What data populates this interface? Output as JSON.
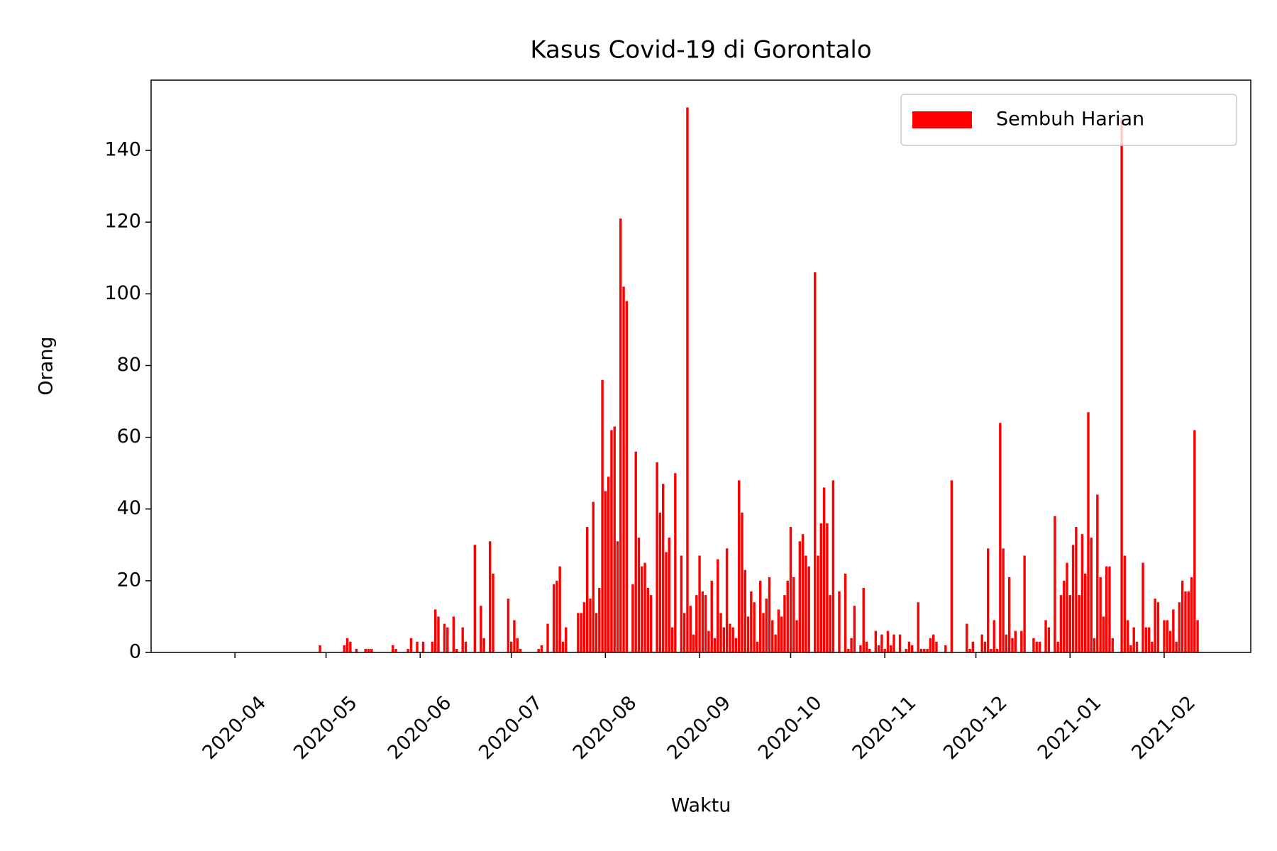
{
  "chart_data": {
    "type": "bar",
    "title": "Kasus Covid-19 di Gorontalo",
    "xlabel": "Waktu",
    "ylabel": "Orang",
    "series": [
      {
        "name": "Sembuh Harian",
        "color": "#ff0000",
        "x": [
          18381,
          18389,
          18390,
          18391,
          18393,
          18396,
          18397,
          18398,
          18405,
          18406,
          18410,
          18411,
          18413,
          18415,
          18418,
          18419,
          18420,
          18422,
          18423,
          18425,
          18426,
          18428,
          18429,
          18432,
          18434,
          18435,
          18437,
          18438,
          18443,
          18444,
          18445,
          18446,
          18447,
          18453,
          18454,
          18456,
          18458,
          18459,
          18460,
          18461,
          18462,
          18466,
          18467,
          18468,
          18469,
          18470,
          18471,
          18472,
          18473,
          18474,
          18475,
          18476,
          18477,
          18478,
          18479,
          18480,
          18481,
          18482,
          18484,
          18485,
          18486,
          18487,
          18488,
          18489,
          18490,
          18492,
          18493,
          18494,
          18495,
          18496,
          18497,
          18498,
          18500,
          18501,
          18502,
          18503,
          18504,
          18505,
          18506,
          18507,
          18508,
          18509,
          18510,
          18511,
          18512,
          18513,
          18514,
          18515,
          18516,
          18517,
          18518,
          18519,
          18520,
          18521,
          18522,
          18523,
          18524,
          18525,
          18526,
          18527,
          18528,
          18529,
          18530,
          18531,
          18532,
          18533,
          18534,
          18535,
          18536,
          18537,
          18538,
          18539,
          18540,
          18541,
          18542,
          18544,
          18545,
          18546,
          18547,
          18548,
          18549,
          18550,
          18552,
          18554,
          18555,
          18556,
          18557,
          18559,
          18560,
          18561,
          18562,
          18564,
          18565,
          18566,
          18567,
          18568,
          18569,
          18570,
          18572,
          18574,
          18575,
          18576,
          18578,
          18579,
          18580,
          18581,
          18582,
          18583,
          18584,
          18587,
          18589,
          18594,
          18595,
          18596,
          18599,
          18600,
          18601,
          18602,
          18603,
          18604,
          18605,
          18606,
          18607,
          18608,
          18609,
          18610,
          18612,
          18613,
          18616,
          18617,
          18618,
          18620,
          18621,
          18623,
          18624,
          18625,
          18626,
          18627,
          18628,
          18629,
          18630,
          18631,
          18632,
          18633,
          18634,
          18635,
          18636,
          18637,
          18638,
          18639,
          18640,
          18641,
          18642,
          18645,
          18646,
          18647,
          18648,
          18649,
          18650,
          18652,
          18653,
          18654,
          18655,
          18656,
          18657,
          18659,
          18660,
          18661,
          18662,
          18663,
          18664,
          18665,
          18666,
          18667,
          18668,
          18669,
          18670
        ],
        "values": [
          2,
          2,
          4,
          3,
          1,
          1,
          1,
          1,
          2,
          1,
          1,
          4,
          3,
          3,
          3,
          12,
          10,
          8,
          7,
          10,
          1,
          7,
          3,
          30,
          13,
          4,
          31,
          22,
          15,
          3,
          9,
          4,
          1,
          1,
          2,
          8,
          19,
          20,
          24,
          3,
          7,
          11,
          11,
          14,
          35,
          15,
          42,
          11,
          18,
          76,
          45,
          49,
          62,
          63,
          31,
          121,
          102,
          98,
          19,
          56,
          32,
          24,
          25,
          18,
          16,
          53,
          39,
          47,
          28,
          32,
          7,
          50,
          27,
          11,
          152,
          13,
          5,
          16,
          27,
          17,
          16,
          6,
          20,
          4,
          26,
          11,
          7,
          29,
          8,
          7,
          4,
          48,
          39,
          23,
          10,
          17,
          14,
          3,
          20,
          11,
          15,
          21,
          9,
          5,
          12,
          10,
          16,
          20,
          35,
          21,
          9,
          31,
          33,
          27,
          24,
          106,
          27,
          36,
          46,
          36,
          16,
          48,
          17,
          22,
          1,
          4,
          13,
          2,
          18,
          3,
          1,
          6,
          2,
          5,
          1,
          6,
          2,
          5,
          5,
          1,
          3,
          2,
          14,
          1,
          1,
          1,
          4,
          5,
          3,
          2,
          48,
          8,
          1,
          3,
          5,
          3,
          29,
          1,
          9,
          1,
          64,
          29,
          5,
          21,
          4,
          6,
          6,
          27,
          4,
          3,
          3,
          9,
          7,
          38,
          3,
          16,
          20,
          25,
          16,
          30,
          35,
          16,
          33,
          22,
          67,
          32,
          4,
          44,
          21,
          10,
          24,
          24,
          4,
          149,
          27,
          9,
          2,
          7,
          3,
          25,
          7,
          7,
          3,
          15,
          14,
          9,
          9,
          6,
          12,
          3,
          14,
          20,
          17,
          17,
          21,
          62,
          9
        ]
      }
    ],
    "xlim": [
      18325.4,
      18687.5
    ],
    "xticks": [
      {
        "value": 18353,
        "label": "2020-04"
      },
      {
        "value": 18383,
        "label": "2020-05"
      },
      {
        "value": 18414,
        "label": "2020-06"
      },
      {
        "value": 18444,
        "label": "2020-07"
      },
      {
        "value": 18475,
        "label": "2020-08"
      },
      {
        "value": 18506,
        "label": "2020-09"
      },
      {
        "value": 18536,
        "label": "2020-10"
      },
      {
        "value": 18567,
        "label": "2020-11"
      },
      {
        "value": 18597,
        "label": "2020-12"
      },
      {
        "value": 18628,
        "label": "2021-01"
      },
      {
        "value": 18659,
        "label": "2021-02"
      }
    ],
    "ylim": [
      0,
      159.6
    ],
    "yticks": [
      0,
      20,
      40,
      60,
      80,
      100,
      120,
      140
    ],
    "bar_width": 0.8,
    "legend": "upper right"
  }
}
